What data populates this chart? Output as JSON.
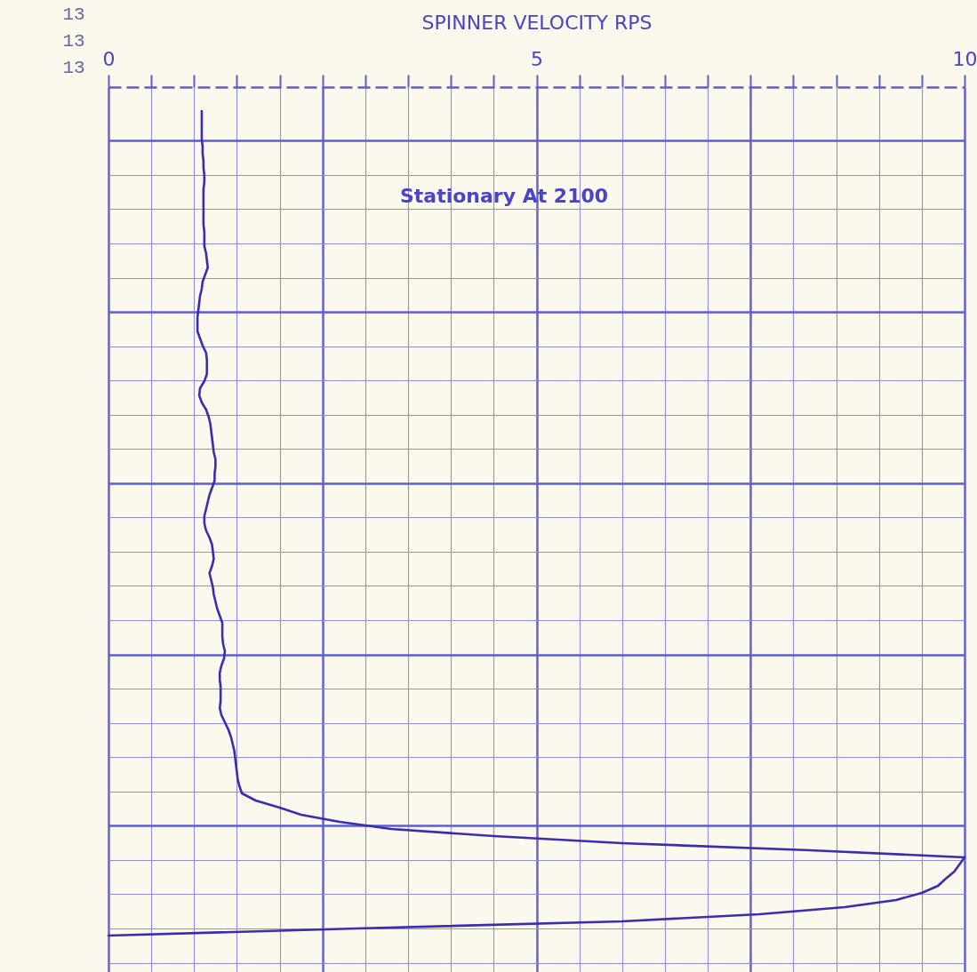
{
  "chart_data": {
    "type": "line",
    "orientation": "horizontal",
    "xlabel": "SPINNER VELOCITY RPS",
    "grid": true,
    "xlim": [
      0,
      10
    ],
    "xticks": [
      0,
      {
        "value": 0.5,
        "label": null
      },
      {
        "value": 1,
        "label": null
      },
      {
        "value": 1.5,
        "label": null
      },
      {
        "value": 2,
        "label": null
      },
      {
        "value": 2.5,
        "label": null
      },
      {
        "value": 3,
        "label": null
      },
      {
        "value": 3.5,
        "label": null
      },
      {
        "value": 4,
        "label": null
      },
      {
        "value": 4.5,
        "label": null
      },
      5,
      {
        "value": 5.5,
        "label": null
      },
      {
        "value": 6,
        "label": null
      },
      {
        "value": 6.5,
        "label": null
      },
      {
        "value": 7,
        "label": null
      },
      {
        "value": 7.5,
        "label": null
      },
      {
        "value": 8,
        "label": null
      },
      {
        "value": 8.5,
        "label": null
      },
      {
        "value": 9,
        "label": null
      },
      {
        "value": 9.5,
        "label": null
      },
      10
    ],
    "annotations": [
      "13",
      "13",
      "13",
      "Stationary At 2100"
    ],
    "categories": [
      null,
      null,
      null,
      null,
      null,
      null,
      null,
      null,
      null,
      null,
      null,
      null,
      null,
      null,
      null,
      null,
      null,
      null,
      null,
      null,
      null,
      null,
      null,
      null,
      null,
      null,
      null,
      null,
      null,
      null,
      null,
      null,
      null,
      null,
      null,
      null,
      null,
      null,
      null,
      null,
      null,
      null,
      null,
      null,
      null,
      null,
      null,
      null,
      null,
      null,
      null,
      null,
      null,
      null,
      null,
      null,
      null,
      null,
      null,
      null,
      null,
      null,
      null,
      null,
      null,
      null,
      null,
      null,
      null,
      null,
      null,
      null,
      null,
      null,
      null,
      null,
      null,
      null,
      null,
      null,
      null,
      null,
      null,
      null,
      null,
      null,
      null,
      null,
      null,
      null,
      null,
      null,
      null,
      null,
      null,
      null,
      null,
      null,
      null,
      null,
      null,
      null,
      null,
      null,
      null,
      null,
      null,
      null,
      null,
      null,
      null,
      null,
      null,
      null,
      null,
      null,
      null
    ],
    "series": [
      {
        "color": "#3b2db0",
        "values": [
          1.09,
          1.09,
          1.09,
          1.09,
          1.09,
          1.1,
          1.1,
          1.11,
          1.11,
          1.12,
          1.12,
          1.11,
          1.11,
          1.11,
          1.11,
          1.11,
          1.11,
          1.12,
          1.12,
          1.12,
          1.14,
          1.15,
          1.16,
          1.13,
          1.1,
          1.09,
          1.07,
          1.06,
          1.05,
          1.04,
          1.04,
          1.04,
          1.07,
          1.1,
          1.14,
          1.15,
          1.15,
          1.15,
          1.12,
          1.07,
          1.06,
          1.09,
          1.14,
          1.17,
          1.19,
          1.2,
          1.21,
          1.22,
          1.23,
          1.25,
          1.25,
          1.24,
          1.24,
          1.21,
          1.18,
          1.16,
          1.14,
          1.12,
          1.12,
          1.14,
          1.18,
          1.21,
          1.22,
          1.23,
          1.21,
          1.18,
          1.2,
          1.22,
          1.23,
          1.25,
          1.27,
          1.3,
          1.33,
          1.33,
          1.33,
          1.34,
          1.36,
          1.35,
          1.32,
          1.3,
          1.3,
          1.31,
          1.31,
          1.31,
          1.3,
          1.32,
          1.36,
          1.4,
          1.43,
          1.45,
          1.47,
          1.48,
          1.49,
          1.5,
          1.51,
          1.53,
          1.56,
          1.72,
          2.0,
          2.25,
          2.7,
          3.3,
          4.5,
          6.0,
          8.2,
          10.0,
          9.94,
          9.88,
          9.78,
          9.69,
          9.5,
          9.2,
          8.6,
          7.6,
          6.0,
          2.9,
          0.0
        ]
      }
    ]
  }
}
